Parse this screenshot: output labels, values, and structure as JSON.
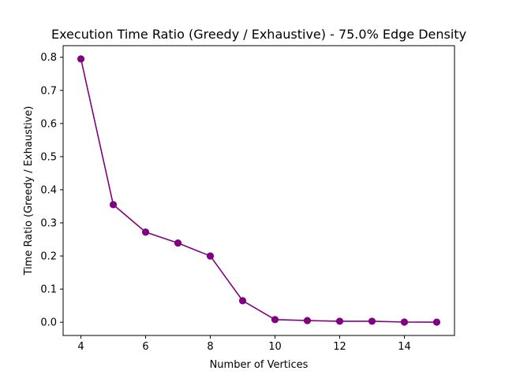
{
  "chart_data": {
    "type": "line",
    "title": "Execution Time Ratio (Greedy / Exhaustive) - 75.0% Edge Density",
    "xlabel": "Number of Vertices",
    "ylabel": "Time Ratio (Greedy / Exhaustive)",
    "xlim": [
      3.45,
      15.55
    ],
    "ylim": [
      -0.04,
      0.835
    ],
    "xticks": [
      4,
      6,
      8,
      10,
      12,
      14
    ],
    "yticks": [
      0.0,
      0.1,
      0.2,
      0.3,
      0.4,
      0.5,
      0.6,
      0.7,
      0.8
    ],
    "ytick_labels": [
      "0.0",
      "0.1",
      "0.2",
      "0.3",
      "0.4",
      "0.5",
      "0.6",
      "0.7",
      "0.8"
    ],
    "grid": false,
    "series": [
      {
        "color": "#800080",
        "marker": "circle",
        "x": [
          4,
          5,
          6,
          7,
          8,
          9,
          10,
          11,
          12,
          13,
          14,
          15
        ],
        "y": [
          0.795,
          0.355,
          0.272,
          0.239,
          0.2,
          0.065,
          0.008,
          0.005,
          0.003,
          0.003,
          0.0005,
          0.0003
        ]
      }
    ]
  }
}
